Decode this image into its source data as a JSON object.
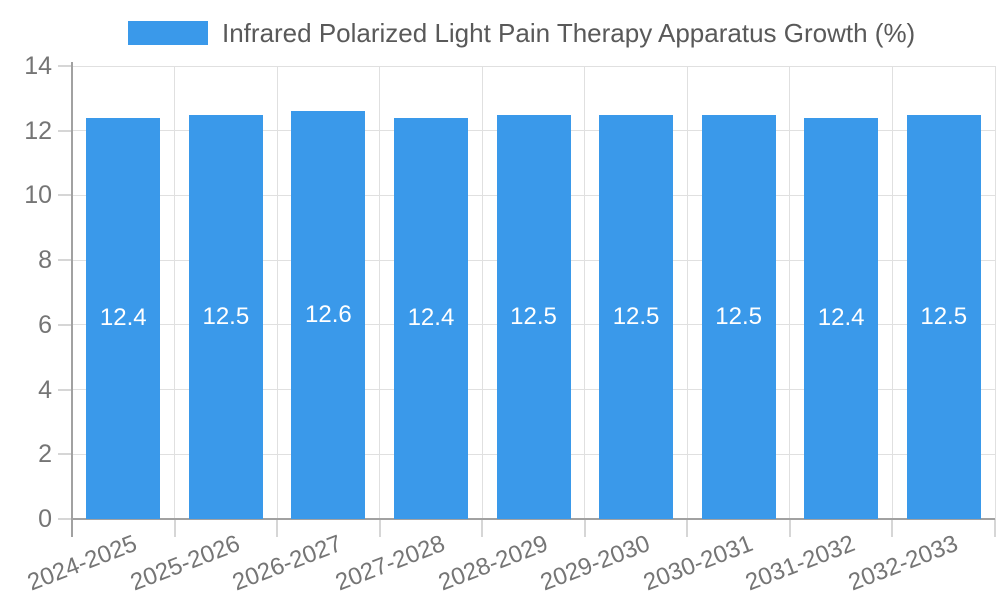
{
  "chart_data": {
    "type": "bar",
    "title": "Infrared Polarized Light Pain Therapy Apparatus Growth (%)",
    "categories": [
      "2024-2025",
      "2025-2026",
      "2026-2027",
      "2027-2028",
      "2028-2029",
      "2029-2030",
      "2030-2031",
      "2031-2032",
      "2032-2033"
    ],
    "values": [
      12.4,
      12.5,
      12.6,
      12.4,
      12.5,
      12.5,
      12.5,
      12.4,
      12.5
    ],
    "data_labels": [
      "12.4",
      "12.5",
      "12.6",
      "12.4",
      "12.5",
      "12.5",
      "12.5",
      "12.4",
      "12.5"
    ],
    "xlabel": "",
    "ylabel": "",
    "ylim": [
      0,
      14
    ],
    "yticks": [
      0,
      2,
      4,
      6,
      8,
      10,
      12,
      14
    ],
    "grid": true,
    "legend_position": "top-center",
    "x_tick_rotation_deg": -21,
    "colors": {
      "bar": "#3a99ea",
      "bar_label": "#ffffff",
      "grid": "#e0e0e0",
      "tick": "#d6d6d6",
      "axis": "#a1a1a1",
      "tick_label": "#757575",
      "legend_text": "#595959",
      "background": "#ffffff"
    }
  }
}
